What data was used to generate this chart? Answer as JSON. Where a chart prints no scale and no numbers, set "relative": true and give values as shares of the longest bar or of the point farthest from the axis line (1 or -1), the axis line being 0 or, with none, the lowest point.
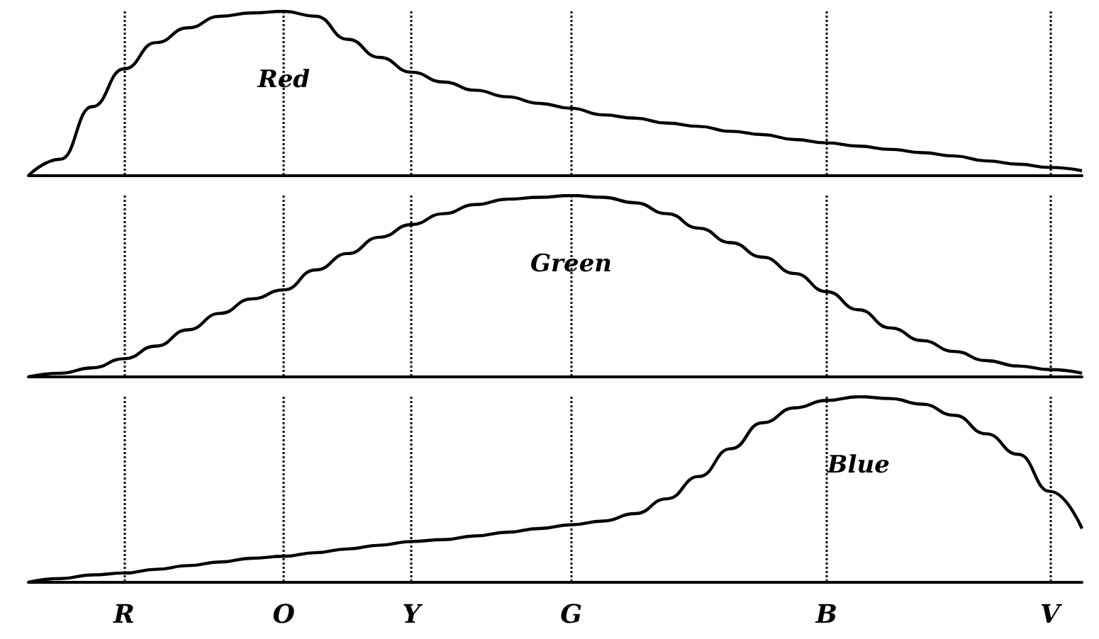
{
  "chart_data": [
    {
      "type": "line",
      "relative": true,
      "tick_labels": false,
      "grid": "x",
      "line_style": "solid",
      "marker": "none",
      "categories": [
        null,
        null,
        null,
        null,
        null,
        null,
        null,
        null,
        null,
        null,
        null,
        null,
        null,
        null,
        null,
        null,
        null,
        null,
        null,
        null,
        null,
        null,
        null,
        null,
        null,
        null,
        null,
        null,
        null,
        null,
        null,
        null,
        null,
        null
      ],
      "series": [
        {
          "name": "Red",
          "color": "#000000",
          "values": [
            0,
            0.1,
            0.42,
            0.65,
            0.81,
            0.9,
            0.97,
            0.99,
            1,
            0.97,
            0.83,
            0.72,
            0.63,
            0.57,
            0.52,
            0.48,
            0.44,
            0.41,
            0.37,
            0.35,
            0.32,
            0.3,
            0.27,
            0.25,
            0.22,
            0.2,
            0.18,
            0.16,
            0.14,
            0.12,
            0.09,
            0.07,
            0.05,
            0.03
          ]
        }
      ]
    },
    {
      "type": "line",
      "relative": true,
      "tick_labels": false,
      "grid": "x",
      "line_style": "solid",
      "marker": "none",
      "categories": [
        null,
        null,
        null,
        null,
        null,
        null,
        null,
        null,
        null,
        null,
        null,
        null,
        null,
        null,
        null,
        null,
        null,
        null,
        null,
        null,
        null,
        null,
        null,
        null,
        null,
        null,
        null,
        null,
        null,
        null,
        null,
        null,
        null,
        null
      ],
      "series": [
        {
          "name": "Green",
          "color": "#000000",
          "values": [
            0,
            0.02,
            0.05,
            0.1,
            0.17,
            0.26,
            0.35,
            0.43,
            0.48,
            0.59,
            0.68,
            0.77,
            0.84,
            0.9,
            0.95,
            0.98,
            0.99,
            1,
            0.99,
            0.96,
            0.9,
            0.82,
            0.74,
            0.66,
            0.57,
            0.47,
            0.37,
            0.27,
            0.2,
            0.14,
            0.09,
            0.06,
            0.04,
            0.02
          ]
        }
      ]
    },
    {
      "type": "line",
      "relative": true,
      "tick_labels": "x",
      "grid": "x",
      "line_style": "solid",
      "marker": "none",
      "categories": [
        null,
        null,
        null,
        "R",
        null,
        null,
        null,
        null,
        "O",
        null,
        null,
        null,
        "Y",
        null,
        null,
        null,
        null,
        "G",
        null,
        null,
        null,
        null,
        null,
        null,
        null,
        "B",
        null,
        null,
        null,
        null,
        null,
        null,
        "V",
        null
      ],
      "series": [
        {
          "name": "Blue",
          "color": "#000000",
          "values": [
            0,
            0.02,
            0.04,
            0.05,
            0.07,
            0.09,
            0.11,
            0.13,
            0.14,
            0.16,
            0.18,
            0.2,
            0.22,
            0.23,
            0.25,
            0.27,
            0.29,
            0.31,
            0.33,
            0.37,
            0.45,
            0.57,
            0.72,
            0.86,
            0.94,
            0.98,
            1,
            0.99,
            0.96,
            0.9,
            0.8,
            0.69,
            0.49,
            0.29
          ]
        }
      ]
    }
  ]
}
